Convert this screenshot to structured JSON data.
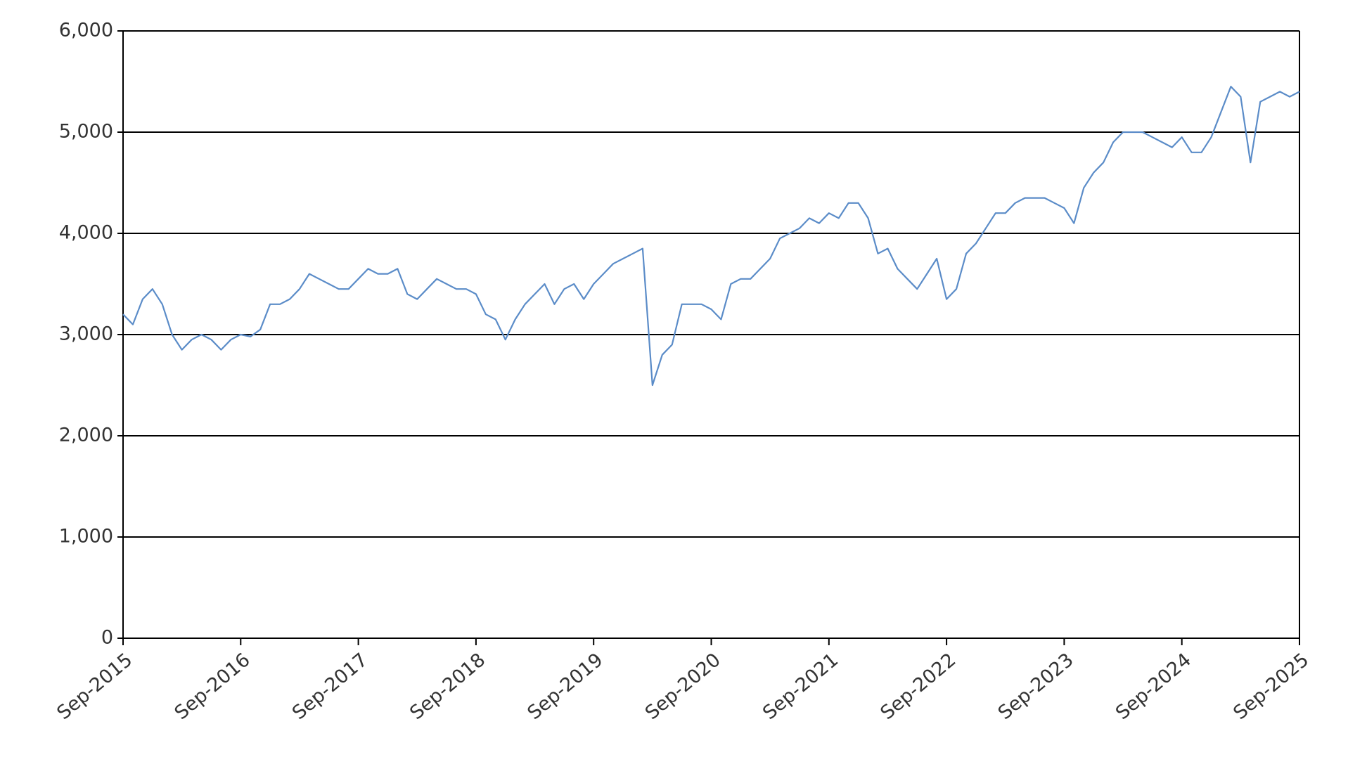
{
  "chart_data": {
    "type": "line",
    "x": [
      "Sep-2015",
      "Oct-2015",
      "Nov-2015",
      "Dec-2015",
      "Jan-2016",
      "Feb-2016",
      "Mar-2016",
      "Apr-2016",
      "May-2016",
      "Jun-2016",
      "Jul-2016",
      "Aug-2016",
      "Sep-2016",
      "Oct-2016",
      "Nov-2016",
      "Dec-2016",
      "Jan-2017",
      "Feb-2017",
      "Mar-2017",
      "Apr-2017",
      "May-2017",
      "Jun-2017",
      "Jul-2017",
      "Aug-2017",
      "Sep-2017",
      "Oct-2017",
      "Nov-2017",
      "Dec-2017",
      "Jan-2018",
      "Feb-2018",
      "Mar-2018",
      "Apr-2018",
      "May-2018",
      "Jun-2018",
      "Jul-2018",
      "Aug-2018",
      "Sep-2018",
      "Oct-2018",
      "Nov-2018",
      "Dec-2018",
      "Jan-2019",
      "Feb-2019",
      "Mar-2019",
      "Apr-2019",
      "May-2019",
      "Jun-2019",
      "Jul-2019",
      "Aug-2019",
      "Sep-2019",
      "Oct-2019",
      "Nov-2019",
      "Dec-2019",
      "Jan-2020",
      "Feb-2020",
      "Mar-2020",
      "Apr-2020",
      "May-2020",
      "Jun-2020",
      "Jul-2020",
      "Aug-2020",
      "Sep-2020",
      "Oct-2020",
      "Nov-2020",
      "Dec-2020",
      "Jan-2021",
      "Feb-2021",
      "Mar-2021",
      "Apr-2021",
      "May-2021",
      "Jun-2021",
      "Jul-2021",
      "Aug-2021",
      "Sep-2021",
      "Oct-2021",
      "Nov-2021",
      "Dec-2021",
      "Jan-2022",
      "Feb-2022",
      "Mar-2022",
      "Apr-2022",
      "May-2022",
      "Jun-2022",
      "Jul-2022",
      "Aug-2022",
      "Sep-2022",
      "Oct-2022",
      "Nov-2022",
      "Dec-2022",
      "Jan-2023",
      "Feb-2023",
      "Mar-2023",
      "Apr-2023",
      "May-2023",
      "Jun-2023",
      "Jul-2023",
      "Aug-2023",
      "Sep-2023",
      "Oct-2023",
      "Nov-2023",
      "Dec-2023",
      "Jan-2024",
      "Feb-2024",
      "Mar-2024",
      "Apr-2024",
      "May-2024",
      "Jun-2024",
      "Jul-2024",
      "Aug-2024",
      "Sep-2024",
      "Oct-2024",
      "Nov-2024",
      "Dec-2024",
      "Jan-2025",
      "Feb-2025",
      "Mar-2025",
      "Apr-2025",
      "May-2025",
      "Jun-2025",
      "Jul-2025",
      "Aug-2025",
      "Sep-2025"
    ],
    "series": [
      {
        "color": "#5b8cc8",
        "values": [
          3200,
          3100,
          3350,
          3450,
          3300,
          3000,
          2850,
          2950,
          3000,
          2950,
          2850,
          2950,
          3000,
          2980,
          3050,
          3300,
          3300,
          3350,
          3450,
          3600,
          3550,
          3500,
          3450,
          3450,
          3550,
          3650,
          3600,
          3600,
          3650,
          3400,
          3350,
          3450,
          3550,
          3500,
          3450,
          3450,
          3400,
          3200,
          3150,
          2950,
          3150,
          3300,
          3400,
          3500,
          3300,
          3450,
          3500,
          3350,
          3500,
          3600,
          3700,
          3750,
          3800,
          3850,
          2500,
          2800,
          2900,
          3300,
          3300,
          3300,
          3250,
          3150,
          3500,
          3550,
          3550,
          3650,
          3750,
          3950,
          4000,
          4050,
          4150,
          4100,
          4200,
          4150,
          4300,
          4300,
          4150,
          3800,
          3850,
          3650,
          3550,
          3450,
          3600,
          3750,
          3350,
          3450,
          3800,
          3900,
          4050,
          4200,
          4200,
          4300,
          4350,
          4350,
          4350,
          4300,
          4250,
          4100,
          4450,
          4600,
          4700,
          4900,
          5000,
          5000,
          5000,
          4950,
          4900,
          4850,
          4950,
          4800,
          4800,
          4950,
          5200,
          5450,
          5350,
          4700,
          5300,
          5350,
          5400,
          5350,
          5400
        ]
      }
    ],
    "xticks": [
      "Sep-2015",
      "Sep-2016",
      "Sep-2017",
      "Sep-2018",
      "Sep-2019",
      "Sep-2020",
      "Sep-2021",
      "Sep-2022",
      "Sep-2023",
      "Sep-2024",
      "Sep-2025"
    ],
    "ylim": [
      0,
      6000
    ],
    "yticks": [
      0,
      {
        "value": 1000,
        "label": "1,000"
      },
      {
        "value": 2000,
        "label": "2,000"
      },
      {
        "value": 3000,
        "label": "3,000"
      },
      {
        "value": 4000,
        "label": "4,000"
      },
      {
        "value": 5000,
        "label": "5,000"
      },
      {
        "value": 6000,
        "label": "6,000"
      }
    ],
    "grid": true
  }
}
